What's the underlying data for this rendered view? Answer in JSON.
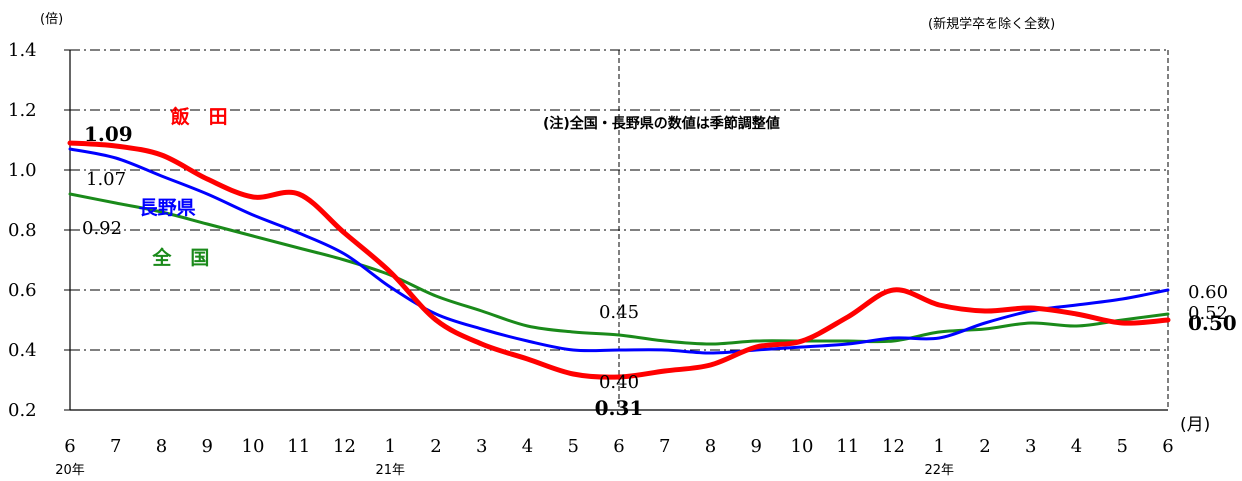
{
  "chart_data": {
    "type": "line",
    "ylabel": "(倍)",
    "top_right_note": "(新規学卒を除く全数)",
    "center_note": "(注)全国・長野県の数値は季節調整値",
    "x_unit": "(月)",
    "x_ticks": [
      "6",
      "7",
      "8",
      "9",
      "10",
      "11",
      "12",
      "1",
      "2",
      "3",
      "4",
      "5",
      "6",
      "7",
      "8",
      "9",
      "10",
      "11",
      "12",
      "1",
      "2",
      "3",
      "4",
      "5",
      "6"
    ],
    "year_labels": [
      {
        "index": 0,
        "label": "20年"
      },
      {
        "index": 7,
        "label": "21年"
      },
      {
        "index": 19,
        "label": "22年"
      }
    ],
    "ylim": [
      0.2,
      1.4
    ],
    "y_ticks": [
      "0.2",
      "0.4",
      "0.6",
      "0.8",
      "1.0",
      "1.2",
      "1.4"
    ],
    "grid": true,
    "series": [
      {
        "name": "飯　田",
        "color": "#ff0000",
        "values": [
          1.09,
          1.08,
          1.05,
          0.97,
          0.91,
          0.92,
          0.79,
          0.66,
          0.5,
          0.42,
          0.37,
          0.32,
          0.31,
          0.33,
          0.35,
          0.41,
          0.43,
          0.51,
          0.6,
          0.55,
          0.53,
          0.54,
          0.52,
          0.49,
          0.5
        ]
      },
      {
        "name": "長野県",
        "color": "#0000ff",
        "values": [
          1.07,
          1.04,
          0.98,
          0.92,
          0.85,
          0.79,
          0.72,
          0.61,
          0.52,
          0.47,
          0.43,
          0.4,
          0.4,
          0.4,
          0.39,
          0.4,
          0.41,
          0.42,
          0.44,
          0.44,
          0.49,
          0.53,
          0.55,
          0.57,
          0.6
        ]
      },
      {
        "name": "全　国",
        "color": "#1a8a1a",
        "values": [
          0.92,
          0.89,
          0.86,
          0.82,
          0.78,
          0.74,
          0.7,
          0.65,
          0.58,
          0.53,
          0.48,
          0.46,
          0.45,
          0.43,
          0.42,
          0.43,
          0.43,
          0.43,
          0.43,
          0.46,
          0.47,
          0.49,
          0.48,
          0.5,
          0.52
        ]
      }
    ],
    "data_labels": [
      {
        "text": "1.09",
        "series": 0,
        "index": 0,
        "bold": true
      },
      {
        "text": "1.07",
        "series": 1,
        "index": 0
      },
      {
        "text": "0.92",
        "series": 2,
        "index": 0
      },
      {
        "text": "0.45",
        "series": 2,
        "index": 12
      },
      {
        "text": "0.40",
        "series": 1,
        "index": 12
      },
      {
        "text": "0.31",
        "series": 0,
        "index": 12,
        "bold": true
      },
      {
        "text": "0.60",
        "series": 1,
        "index": 24
      },
      {
        "text": "0.52",
        "series": 2,
        "index": 24
      },
      {
        "text": "0.50",
        "series": 0,
        "index": 24,
        "bold": true
      }
    ]
  }
}
